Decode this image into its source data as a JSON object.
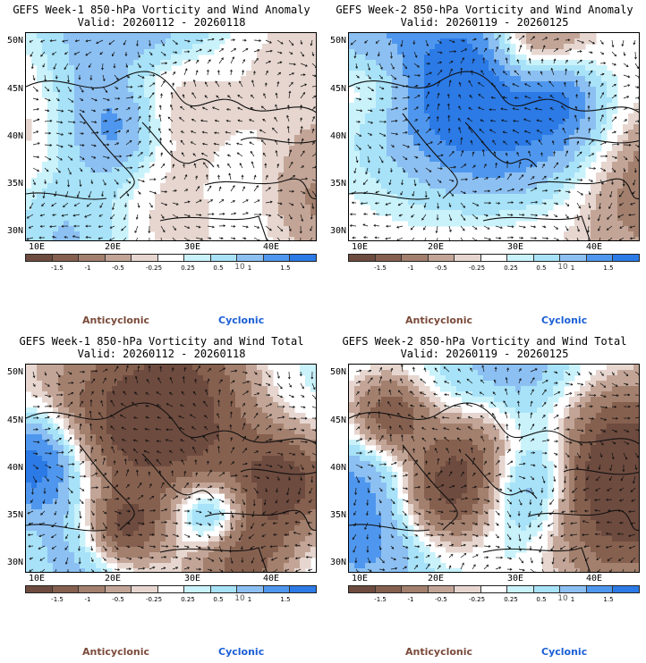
{
  "panels": [
    {
      "title": "GEFS Week-1 850-hPa Vorticity and Wind Anomaly",
      "valid": "Valid: 20260112 - 20260118"
    },
    {
      "title": "GEFS Week-2 850-hPa Vorticity and Wind Anomaly",
      "valid": "Valid: 20260119 - 20260125"
    },
    {
      "title": "GEFS Week-1 850-hPa Vorticity and Wind Total",
      "valid": "Valid: 20260112 - 20260118"
    },
    {
      "title": "GEFS Week-2 850-hPa Vorticity and Wind Total",
      "valid": "Valid: 20260119 - 20260125"
    }
  ],
  "lat_labels": [
    "50N",
    "45N",
    "40N",
    "35N",
    "30N"
  ],
  "lon_labels": [
    "10E",
    "20E",
    "30E",
    "40E"
  ],
  "colorbar": {
    "colors": [
      "#6e4b3f",
      "#86604f",
      "#a3806e",
      "#c3a597",
      "#e6d6cf",
      "#ffffff",
      "#c9f2fb",
      "#a7e2f8",
      "#8cc0f3",
      "#4f97ee",
      "#2b7ae6"
    ],
    "labels": [
      "-1.5",
      "-1",
      "-0.5",
      "-0.25",
      "0.25",
      "0.5",
      "1",
      "1.5"
    ],
    "scale_note": "10"
  },
  "legend": {
    "anticyclonic": "Anticyclonic",
    "cyclonic": "Cyclonic"
  },
  "colors": {
    "anticyclonic": "#7a4a3a",
    "cyclonic": "#1b5fd6"
  }
}
